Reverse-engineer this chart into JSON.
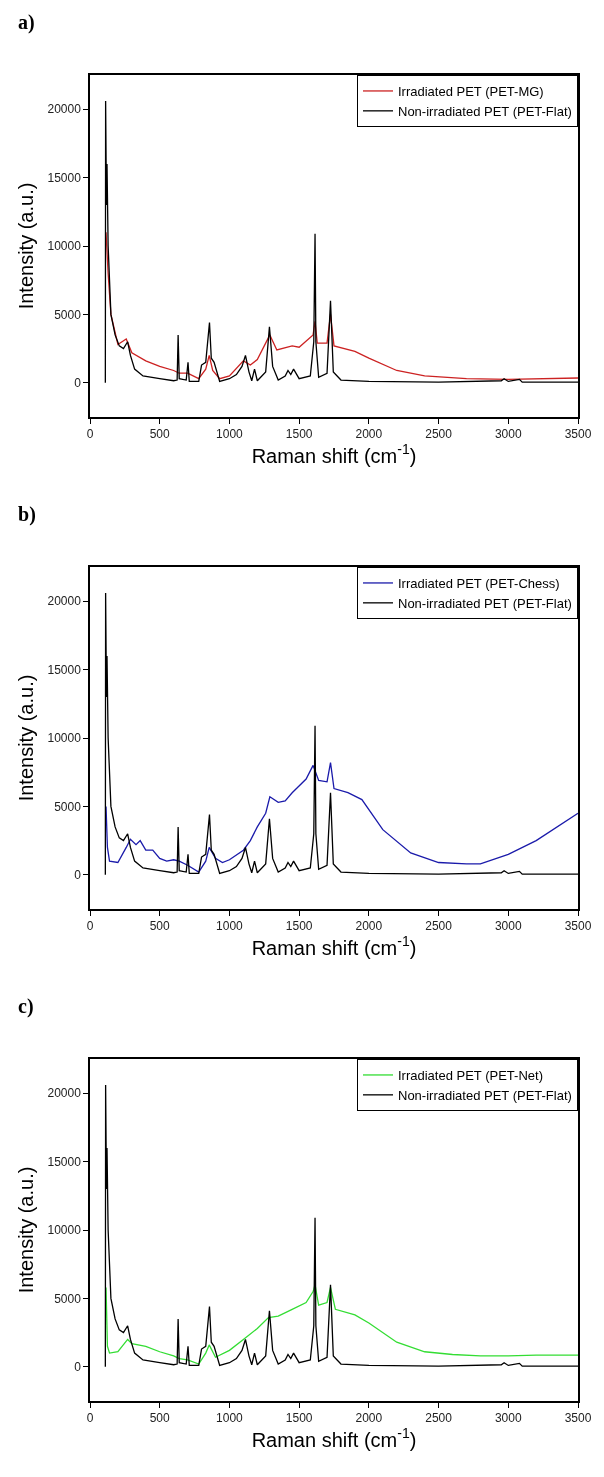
{
  "chart_data": [
    {
      "type": "line",
      "title": "a)",
      "xlabel": "Raman shift (cm$^{-1}$)",
      "ylabel": "Intensity (a.u.)",
      "xlim": [
        0,
        3500
      ],
      "xticks": [
        0,
        500,
        1000,
        1500,
        2000,
        2500,
        3000,
        3500
      ],
      "ylim": [
        -2500,
        22500
      ],
      "yticks": [
        0,
        5000,
        10000,
        15000,
        20000
      ],
      "grid": false,
      "legend": "top right",
      "marker": "none",
      "line_style": "solid",
      "series": [
        {
          "name": "Irradiated PET (PET-MG)",
          "color": "#cc2222",
          "x": [
            115,
            130,
            150,
            200,
            260,
            300,
            400,
            500,
            600,
            640,
            700,
            780,
            830,
            855,
            880,
            930,
            1000,
            1100,
            1150,
            1200,
            1290,
            1340,
            1450,
            1500,
            1600,
            1614,
            1630,
            1700,
            1725,
            1750,
            1900,
            2000,
            2200,
            2400,
            2700,
            3000,
            3500
          ],
          "values": [
            11000,
            8000,
            5000,
            2800,
            3200,
            2200,
            1600,
            1200,
            900,
            700,
            700,
            300,
            1000,
            2000,
            900,
            300,
            500,
            1600,
            1300,
            1700,
            3500,
            2400,
            2700,
            2600,
            3500,
            4500,
            2900,
            2900,
            5000,
            2700,
            2300,
            1800,
            900,
            500,
            300,
            250,
            350
          ]
        },
        {
          "name": "Non-irradiated PET (PET-Flat)",
          "color": "#000000",
          "x": [
            110,
            112,
            118,
            122,
            130,
            150,
            180,
            210,
            240,
            270,
            290,
            320,
            380,
            500,
            600,
            625,
            632,
            640,
            690,
            703,
            712,
            780,
            800,
            830,
            857,
            870,
            890,
            930,
            1000,
            1050,
            1090,
            1115,
            1140,
            1160,
            1180,
            1200,
            1260,
            1287,
            1310,
            1350,
            1400,
            1420,
            1440,
            1460,
            1500,
            1580,
            1605,
            1614,
            1620,
            1640,
            1700,
            1725,
            1745,
            1800,
            2000,
            2500,
            2950,
            2970,
            3000,
            3080,
            3100,
            3500
          ],
          "values": [
            0,
            20600,
            13000,
            16000,
            10000,
            5000,
            3500,
            2700,
            2500,
            3000,
            2000,
            1000,
            500,
            300,
            150,
            200,
            3500,
            300,
            200,
            1500,
            100,
            100,
            1300,
            1500,
            4400,
            1800,
            1500,
            100,
            300,
            600,
            1200,
            2000,
            800,
            150,
            1000,
            150,
            800,
            4100,
            1200,
            200,
            500,
            900,
            600,
            1000,
            300,
            500,
            3000,
            10900,
            3000,
            400,
            700,
            6000,
            800,
            200,
            100,
            50,
            150,
            300,
            100,
            250,
            50,
            50
          ]
        }
      ]
    },
    {
      "type": "line",
      "title": "b)",
      "xlabel": "Raman shift (cm$^{-1}$)",
      "ylabel": "Intensity (a.u.)",
      "xlim": [
        0,
        3500
      ],
      "xticks": [
        0,
        500,
        1000,
        1500,
        2000,
        2500,
        3000,
        3500
      ],
      "ylim": [
        -2500,
        22500
      ],
      "yticks": [
        0,
        5000,
        10000,
        15000,
        20000
      ],
      "grid": false,
      "legend": "top right",
      "marker": "none",
      "line_style": "solid",
      "series": [
        {
          "name": "Irradiated PET (PET-Chess)",
          "color": "#1a1aaa",
          "x": [
            115,
            125,
            140,
            200,
            260,
            290,
            330,
            360,
            400,
            450,
            500,
            550,
            600,
            640,
            700,
            780,
            830,
            855,
            900,
            950,
            1000,
            1100,
            1150,
            1200,
            1260,
            1290,
            1350,
            1400,
            1450,
            1550,
            1600,
            1640,
            1700,
            1725,
            1750,
            1850,
            1950,
            2100,
            2300,
            2500,
            2700,
            2800,
            3000,
            3200,
            3500
          ],
          "values": [
            5000,
            2000,
            1000,
            900,
            2000,
            2600,
            2200,
            2500,
            1800,
            1800,
            1200,
            1000,
            1100,
            1000,
            700,
            200,
            1000,
            2000,
            1200,
            900,
            1100,
            1800,
            2500,
            3500,
            4500,
            5700,
            5300,
            5400,
            6000,
            7000,
            8000,
            6900,
            6800,
            8200,
            6300,
            6000,
            5500,
            3300,
            1600,
            900,
            800,
            800,
            1500,
            2500,
            4500
          ]
        },
        {
          "name": "Non-irradiated PET (PET-Flat)",
          "color": "#000000",
          "x": [
            110,
            112,
            118,
            122,
            130,
            150,
            180,
            210,
            240,
            270,
            290,
            320,
            380,
            500,
            600,
            625,
            632,
            640,
            690,
            703,
            712,
            780,
            800,
            830,
            857,
            870,
            890,
            930,
            1000,
            1050,
            1090,
            1115,
            1140,
            1160,
            1180,
            1200,
            1260,
            1287,
            1310,
            1350,
            1400,
            1420,
            1440,
            1460,
            1500,
            1580,
            1605,
            1614,
            1620,
            1640,
            1700,
            1725,
            1745,
            1800,
            2000,
            2500,
            2950,
            2970,
            3000,
            3080,
            3100,
            3500
          ],
          "values": [
            0,
            20600,
            13000,
            16000,
            10000,
            5000,
            3500,
            2700,
            2500,
            3000,
            2000,
            1000,
            500,
            300,
            150,
            200,
            3500,
            300,
            200,
            1500,
            100,
            100,
            1300,
            1500,
            4400,
            1800,
            1500,
            100,
            300,
            600,
            1200,
            2000,
            800,
            150,
            1000,
            150,
            800,
            4100,
            1200,
            200,
            500,
            900,
            600,
            1000,
            300,
            500,
            3000,
            10900,
            3000,
            400,
            700,
            6000,
            800,
            200,
            100,
            50,
            150,
            300,
            100,
            250,
            50,
            50
          ]
        }
      ]
    },
    {
      "type": "line",
      "title": "c)",
      "xlabel": "Raman shift (cm$^{-1}$)",
      "ylabel": "Intensity (a.u.)",
      "xlim": [
        0,
        3500
      ],
      "xticks": [
        0,
        500,
        1000,
        1500,
        2000,
        2500,
        3000,
        3500
      ],
      "ylim": [
        -2500,
        22500
      ],
      "yticks": [
        0,
        5000,
        10000,
        15000,
        20000
      ],
      "grid": false,
      "legend": "top right",
      "marker": "none",
      "line_style": "solid",
      "series": [
        {
          "name": "Irradiated PET (PET-Net)",
          "color": "#33dd33",
          "x": [
            115,
            125,
            140,
            200,
            270,
            300,
            400,
            500,
            600,
            640,
            700,
            780,
            830,
            855,
            900,
            1000,
            1100,
            1200,
            1280,
            1350,
            1450,
            1550,
            1600,
            1614,
            1640,
            1700,
            1725,
            1760,
            1900,
            2000,
            2200,
            2400,
            2600,
            2800,
            3000,
            3200,
            3500
          ],
          "values": [
            5800,
            1500,
            1000,
            1100,
            2000,
            1700,
            1500,
            1100,
            800,
            600,
            500,
            200,
            1000,
            1600,
            700,
            1200,
            2000,
            2800,
            3600,
            3700,
            4200,
            4700,
            5500,
            6000,
            4500,
            4700,
            5800,
            4200,
            3800,
            3200,
            1800,
            1100,
            900,
            800,
            800,
            850,
            850
          ]
        },
        {
          "name": "Non-irradiated PET (PET-Flat)",
          "color": "#000000",
          "x": [
            110,
            112,
            118,
            122,
            130,
            150,
            180,
            210,
            240,
            270,
            290,
            320,
            380,
            500,
            600,
            625,
            632,
            640,
            690,
            703,
            712,
            780,
            800,
            830,
            857,
            870,
            890,
            930,
            1000,
            1050,
            1090,
            1115,
            1140,
            1160,
            1180,
            1200,
            1260,
            1287,
            1310,
            1350,
            1400,
            1420,
            1440,
            1460,
            1500,
            1580,
            1605,
            1614,
            1620,
            1640,
            1700,
            1725,
            1745,
            1800,
            2000,
            2500,
            2950,
            2970,
            3000,
            3080,
            3100,
            3500
          ],
          "values": [
            0,
            20600,
            13000,
            16000,
            10000,
            5000,
            3500,
            2700,
            2500,
            3000,
            2000,
            1000,
            500,
            300,
            150,
            200,
            3500,
            300,
            200,
            1500,
            100,
            100,
            1300,
            1500,
            4400,
            1800,
            1500,
            100,
            300,
            600,
            1200,
            2000,
            800,
            150,
            1000,
            150,
            800,
            4100,
            1200,
            200,
            500,
            900,
            600,
            1000,
            300,
            500,
            3000,
            10900,
            3000,
            400,
            700,
            6000,
            800,
            200,
            100,
            50,
            150,
            300,
            100,
            250,
            50,
            50
          ]
        }
      ]
    }
  ]
}
